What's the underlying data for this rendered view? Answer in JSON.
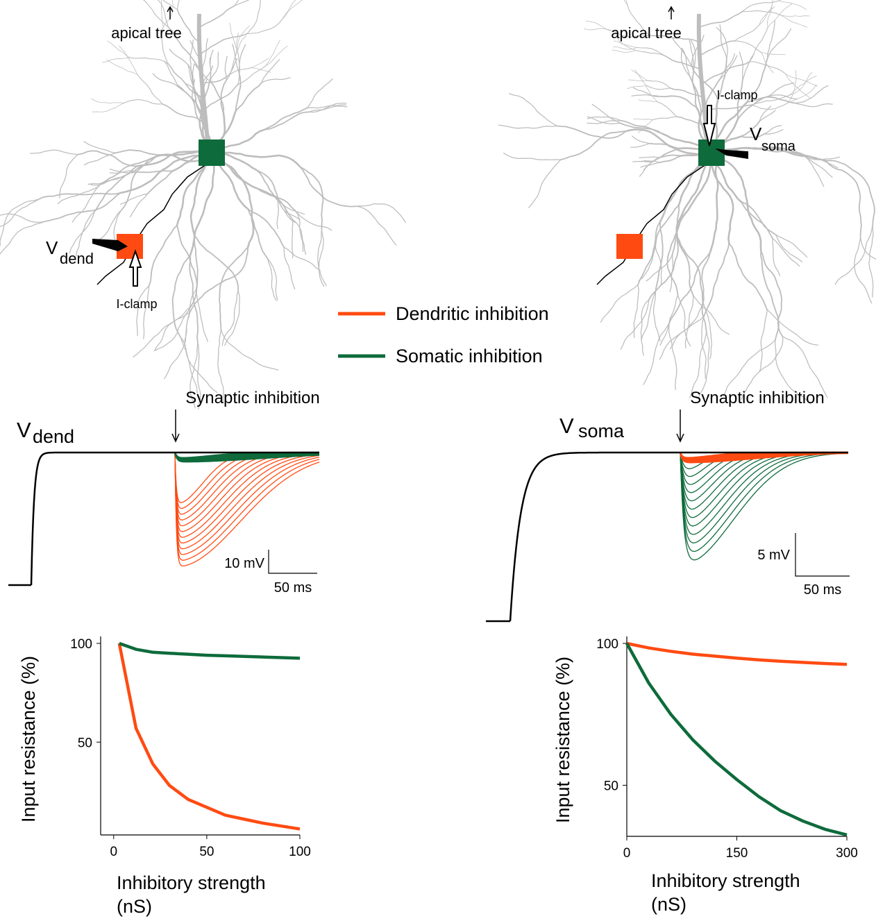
{
  "figure": {
    "left_neuron": {
      "apical": "apical tree",
      "rec_main": "V",
      "rec_sub": "dend",
      "clamp": "I-clamp"
    },
    "right_neuron": {
      "apical": "apical tree",
      "rec_main": "V",
      "rec_sub": "soma",
      "clamp": "I-clamp"
    },
    "left_trace": {
      "event": "Synaptic inhibition",
      "v_main": "V",
      "v_sub": "dend",
      "scale_v": "10 mV",
      "scale_t": "50 ms"
    },
    "right_trace": {
      "event": "Synaptic inhibition",
      "v_main": "V",
      "v_sub": "soma",
      "scale_v": "5 mV",
      "scale_t": "50 ms"
    }
  },
  "chart_data": [
    {
      "type": "line",
      "x_label": "Inhibitory strength (nS)",
      "y_label": "Input resistance (%)",
      "x": [
        3,
        12,
        21,
        30,
        40,
        50,
        60,
        70,
        80,
        90,
        100
      ],
      "series": [
        {
          "name": "Dendritic inhibition",
          "color": "#ff4b12",
          "values": [
            100,
            57,
            39,
            28,
            21,
            17,
            13,
            11,
            9,
            7.5,
            6
          ]
        },
        {
          "name": "Somatic inhibition",
          "color": "#0e6b3b",
          "values": [
            100,
            97,
            95.5,
            95,
            94.5,
            94,
            93.7,
            93.4,
            93.1,
            92.8,
            92.5
          ]
        }
      ],
      "xlim": [
        -7,
        100
      ],
      "ylim": [
        3,
        100
      ],
      "xticks": [
        0,
        50,
        100
      ],
      "yticks": [
        50,
        100
      ]
    },
    {
      "type": "line",
      "x_label": "Inhibitory strength (nS)",
      "y_label": "Input resistance (%)",
      "x": [
        0,
        30,
        60,
        90,
        120,
        150,
        180,
        210,
        240,
        270,
        300
      ],
      "series": [
        {
          "color": "#ff4b12",
          "values": [
            100,
            98.4,
            97.2,
            96.2,
            95.5,
            94.8,
            94.2,
            93.7,
            93.3,
            92.9,
            92.6
          ]
        },
        {
          "color": "#0e6b3b",
          "values": [
            100,
            86,
            75,
            66,
            58.5,
            52,
            46,
            41,
            37.4,
            34.5,
            32.5
          ]
        }
      ],
      "xlim": [
        0,
        300
      ],
      "ylim": [
        32,
        100
      ],
      "xticks": [
        0,
        150,
        300
      ],
      "yticks": [
        50,
        100
      ]
    }
  ]
}
